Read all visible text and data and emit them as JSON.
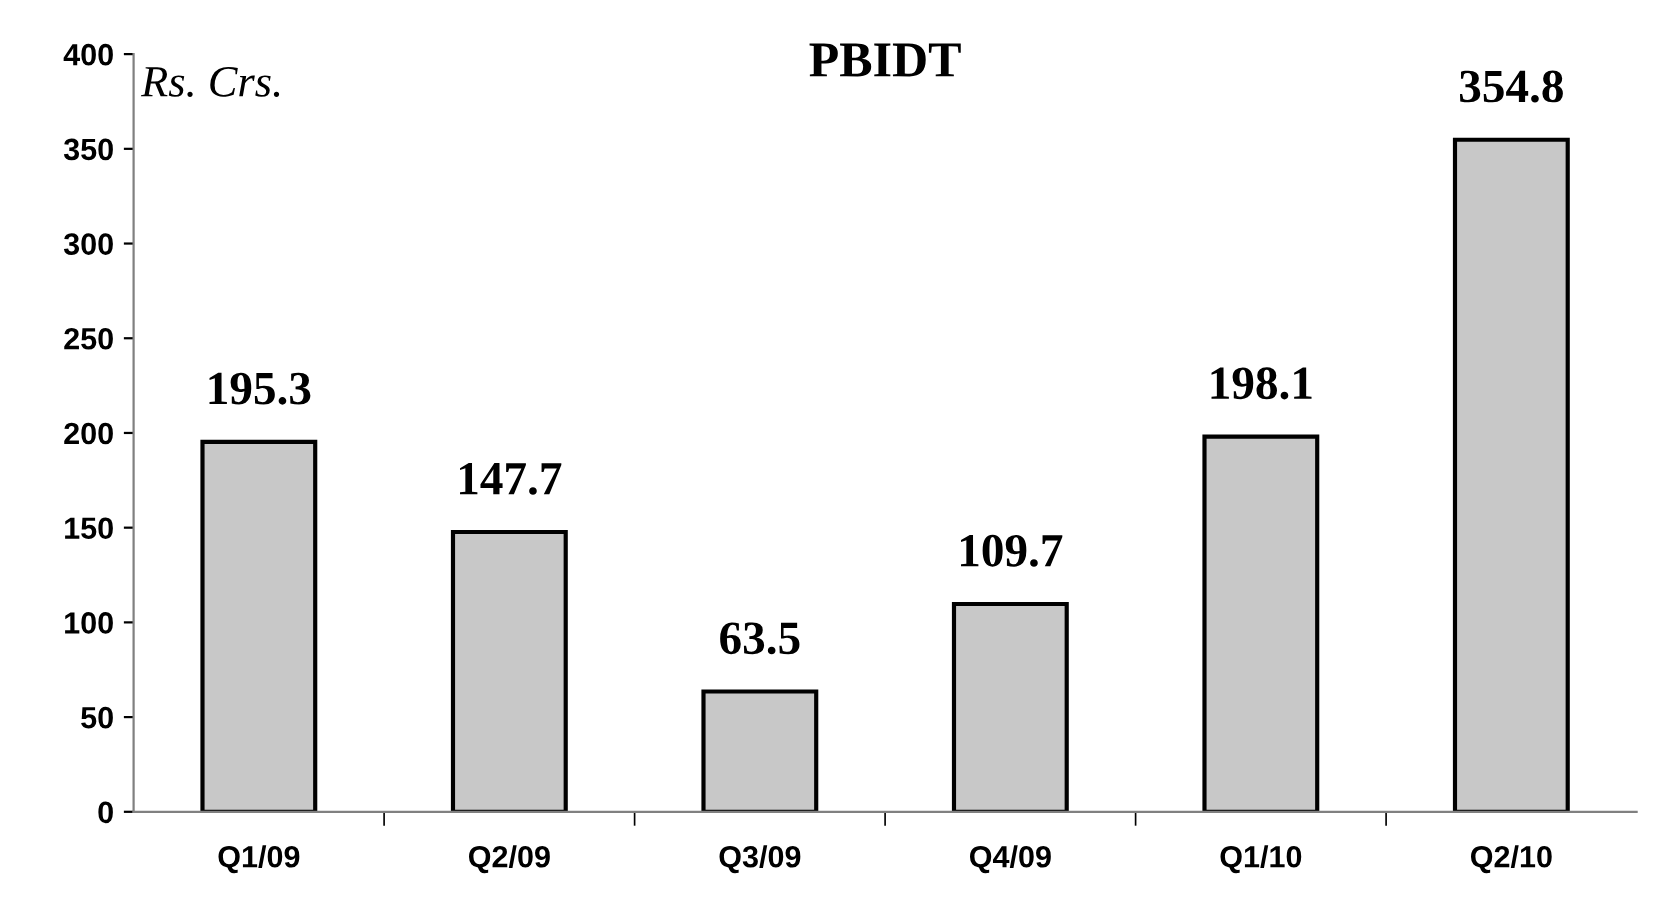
{
  "chart_data": {
    "type": "bar",
    "title": "PBIDT",
    "ylabel": "Rs. Crs.",
    "categories": [
      "Q1/09",
      "Q2/09",
      "Q3/09",
      "Q4/09",
      "Q1/10",
      "Q2/10"
    ],
    "values": [
      195.3,
      147.7,
      63.5,
      109.7,
      198.1,
      354.8
    ],
    "color": "#c8c8c8",
    "ylim": [
      0,
      400
    ],
    "yticks": [
      0,
      50,
      100,
      150,
      200,
      250,
      300,
      350,
      400
    ],
    "grid": false,
    "data_labels": true
  }
}
